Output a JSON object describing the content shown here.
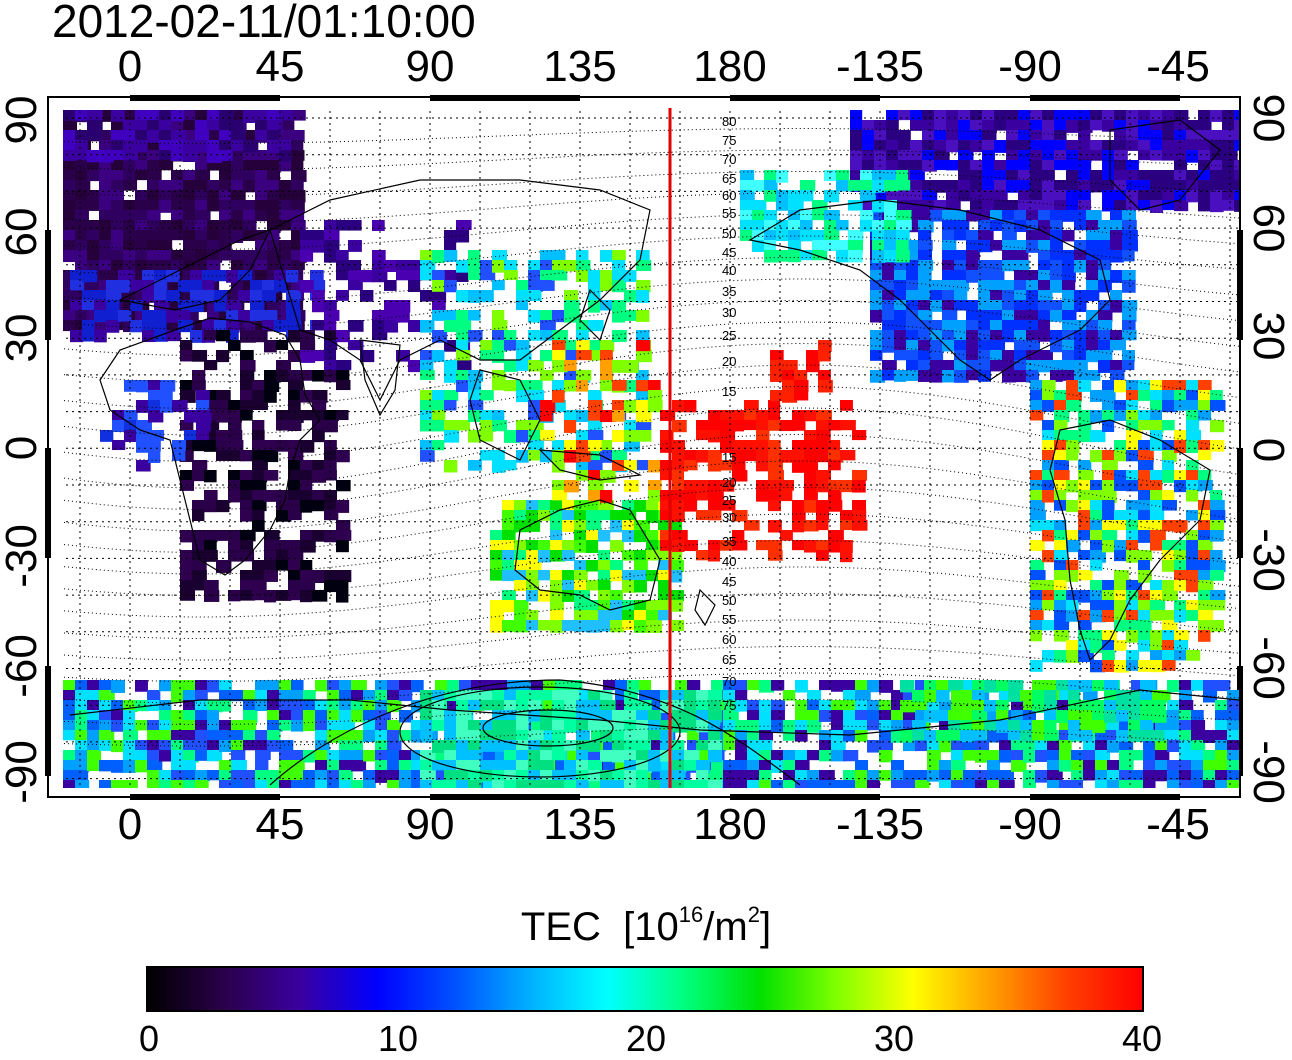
{
  "timestamp": "2012-02-11/01:10:00",
  "map": {
    "lon_labels": [
      "0",
      "45",
      "90",
      "135",
      "180",
      "-135",
      "-90",
      "-45"
    ],
    "lat_labels": [
      "90",
      "60",
      "30",
      "0",
      "-30",
      "-60",
      "-90"
    ],
    "magnetic_latitude_labels": [
      "80",
      "75",
      "70",
      "65",
      "60",
      "55",
      "50",
      "45",
      "40",
      "35",
      "30",
      "25",
      "20",
      "15",
      "15",
      "20",
      "25",
      "30",
      "35",
      "40",
      "45",
      "50",
      "55",
      "60",
      "65",
      "70",
      "75"
    ],
    "terminator_longitude": 162,
    "terminator_color": "#e00000"
  },
  "colorbar": {
    "title": "TEC",
    "unit_prefix": "[10",
    "unit_exp": "16",
    "unit_mid": "/m",
    "unit_exp2": "2",
    "unit_suffix": "]",
    "min": 0,
    "max": 40,
    "tick_labels": [
      "0",
      "10",
      "20",
      "30",
      "40"
    ],
    "colors": [
      "#000000",
      "#2a004a",
      "#3a00a0",
      "#0000ff",
      "#0050ff",
      "#00b0ff",
      "#00ffff",
      "#00ff80",
      "#00e000",
      "#80ff00",
      "#ffff00",
      "#ffa000",
      "#ff4000",
      "#ff0000"
    ]
  }
}
